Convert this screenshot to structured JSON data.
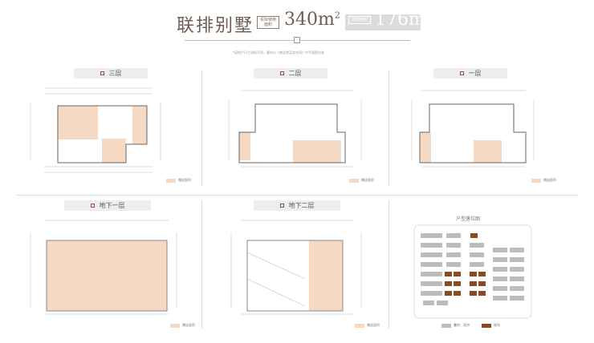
{
  "header": {
    "title": "联排别墅",
    "tag1": "实际使用面积",
    "area1": "340m",
    "tag2": "建筑面积",
    "area2": "176m",
    "sup": "2",
    "note": "*因地产尺寸测绘不同，最终以《商品房买卖合同》中平面图为准"
  },
  "plans": [
    {
      "label": "三层",
      "legend": "赠送面积"
    },
    {
      "label": "二层",
      "legend": "赠送面积"
    },
    {
      "label": "一层",
      "legend": "赠送面积"
    },
    {
      "label": "地下一层",
      "legend": "赠送面积"
    },
    {
      "label": "地下二层",
      "legend": "赠送面积"
    }
  ],
  "location_map": {
    "title": "户型落位图",
    "legend": [
      {
        "label": "叠拼、双拼",
        "color": "#bdbdbd"
      },
      {
        "label": "联排",
        "color": "#8b4a1e"
      }
    ]
  },
  "colors": {
    "gift_area": "#f5d9c3",
    "accent": "#8b4a1e"
  }
}
